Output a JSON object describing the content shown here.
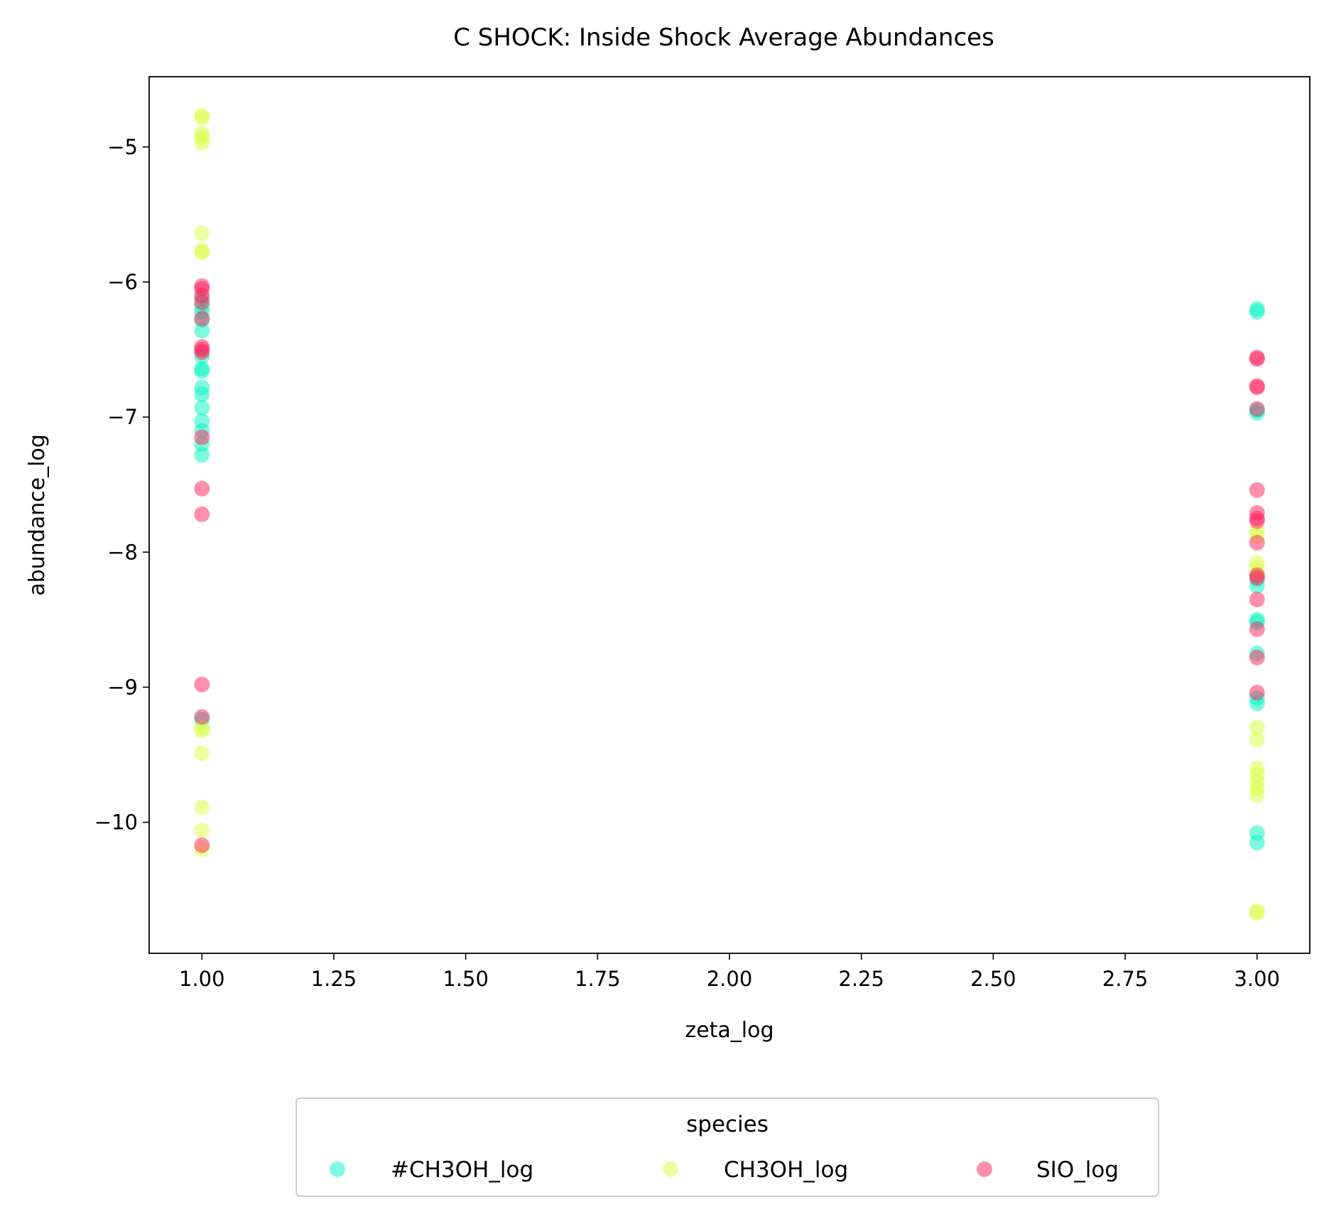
{
  "chart_data": {
    "type": "scatter",
    "title": "C SHOCK: Inside Shock Average Abundances",
    "xlabel": "zeta_log",
    "ylabel": "abundance_log",
    "xlim": [
      0.9,
      3.1
    ],
    "ylim": [
      -10.97,
      -4.48
    ],
    "xticks": [
      1.0,
      1.25,
      1.5,
      1.75,
      2.0,
      2.25,
      2.5,
      2.75,
      3.0
    ],
    "xtick_labels": [
      "1.00",
      "1.25",
      "1.50",
      "1.75",
      "2.00",
      "2.25",
      "2.50",
      "2.75",
      "3.00"
    ],
    "yticks": [
      -5,
      -6,
      -7,
      -8,
      -9,
      -10
    ],
    "ytick_labels": [
      "−5",
      "−6",
      "−7",
      "−8",
      "−9",
      "−10"
    ],
    "grid": false,
    "legend": {
      "title": "species",
      "placement": "below-center"
    },
    "series": [
      {
        "name": "#CH3OH_log",
        "color": "#00f5c0",
        "points": [
          [
            1,
            -6.12
          ],
          [
            1,
            -6.18
          ],
          [
            1,
            -6.22
          ],
          [
            1,
            -6.28
          ],
          [
            1,
            -6.36
          ],
          [
            1,
            -6.55
          ],
          [
            1,
            -6.64
          ],
          [
            1,
            -6.66
          ],
          [
            1,
            -6.78
          ],
          [
            1,
            -6.83
          ],
          [
            1,
            -6.93
          ],
          [
            1,
            -7.03
          ],
          [
            1,
            -7.1
          ],
          [
            1,
            -7.2
          ],
          [
            1,
            -7.28
          ],
          [
            1,
            -9.24
          ],
          [
            3,
            -6.2
          ],
          [
            3,
            -6.22
          ],
          [
            3,
            -6.95
          ],
          [
            3,
            -6.97
          ],
          [
            3,
            -8.2
          ],
          [
            3,
            -8.25
          ],
          [
            3,
            -8.5
          ],
          [
            3,
            -8.52
          ],
          [
            3,
            -8.75
          ],
          [
            3,
            -9.08
          ],
          [
            3,
            -9.12
          ],
          [
            3,
            -10.08
          ],
          [
            3,
            -10.15
          ]
        ]
      },
      {
        "name": "CH3OH_log",
        "color": "#d9ff42",
        "points": [
          [
            1,
            -4.77
          ],
          [
            1,
            -4.78
          ],
          [
            1,
            -4.9
          ],
          [
            1,
            -4.93
          ],
          [
            1,
            -4.97
          ],
          [
            1,
            -5.64
          ],
          [
            1,
            -5.77
          ],
          [
            1,
            -5.78
          ],
          [
            1,
            -9.3
          ],
          [
            1,
            -9.32
          ],
          [
            1,
            -9.49
          ],
          [
            1,
            -9.89
          ],
          [
            1,
            -10.06
          ],
          [
            1,
            -10.2
          ],
          [
            3,
            -7.84
          ],
          [
            3,
            -7.88
          ],
          [
            3,
            -8.08
          ],
          [
            3,
            -8.12
          ],
          [
            3,
            -8.16
          ],
          [
            3,
            -9.3
          ],
          [
            3,
            -9.39
          ],
          [
            3,
            -9.6
          ],
          [
            3,
            -9.65
          ],
          [
            3,
            -9.7
          ],
          [
            3,
            -9.75
          ],
          [
            3,
            -9.8
          ],
          [
            3,
            -10.66
          ],
          [
            3,
            -10.67
          ]
        ]
      },
      {
        "name": "SIO_log",
        "color": "#ff1f5b",
        "points": [
          [
            1,
            -6.03
          ],
          [
            1,
            -6.05
          ],
          [
            1,
            -6.1
          ],
          [
            1,
            -6.15
          ],
          [
            1,
            -6.27
          ],
          [
            1,
            -6.48
          ],
          [
            1,
            -6.5
          ],
          [
            1,
            -6.52
          ],
          [
            1,
            -7.15
          ],
          [
            1,
            -7.53
          ],
          [
            1,
            -7.72
          ],
          [
            1,
            -8.98
          ],
          [
            1,
            -9.22
          ],
          [
            1,
            -10.17
          ],
          [
            3,
            -6.56
          ],
          [
            3,
            -6.57
          ],
          [
            3,
            -6.77
          ],
          [
            3,
            -6.78
          ],
          [
            3,
            -6.94
          ],
          [
            3,
            -7.54
          ],
          [
            3,
            -7.71
          ],
          [
            3,
            -7.75
          ],
          [
            3,
            -7.77
          ],
          [
            3,
            -7.93
          ],
          [
            3,
            -8.17
          ],
          [
            3,
            -8.19
          ],
          [
            3,
            -8.35
          ],
          [
            3,
            -8.57
          ],
          [
            3,
            -8.78
          ],
          [
            3,
            -9.04
          ]
        ]
      }
    ]
  }
}
